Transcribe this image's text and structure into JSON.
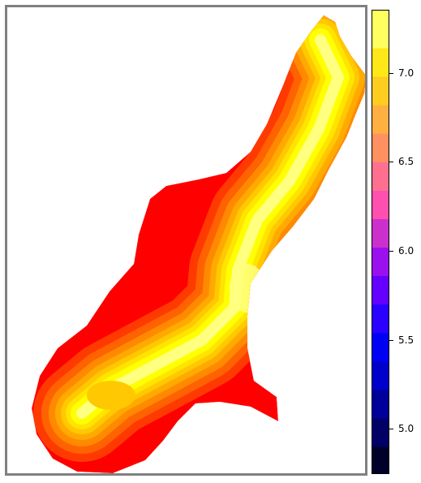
{
  "chart_data": {
    "type": "heatmap",
    "title": "",
    "xlabel": "",
    "ylabel": "",
    "colorbar": {
      "min": 4.75,
      "max": 7.35,
      "ticks": [
        "5.0",
        "5.5",
        "6.0",
        "6.5",
        "7.0"
      ],
      "tick_values": [
        5.0,
        5.5,
        6.0,
        6.5,
        7.0
      ],
      "bands": [
        {
          "from": 4.75,
          "to": 4.9,
          "color": "#00002a"
        },
        {
          "from": 4.9,
          "to": 5.06,
          "color": "#000066"
        },
        {
          "from": 5.06,
          "to": 5.22,
          "color": "#00009a"
        },
        {
          "from": 5.22,
          "to": 5.38,
          "color": "#0000cc"
        },
        {
          "from": 5.38,
          "to": 5.54,
          "color": "#0000f5"
        },
        {
          "from": 5.54,
          "to": 5.7,
          "color": "#2a00ff"
        },
        {
          "from": 5.7,
          "to": 5.86,
          "color": "#6400ff"
        },
        {
          "from": 5.86,
          "to": 6.02,
          "color": "#9a10ee"
        },
        {
          "from": 6.02,
          "to": 6.18,
          "color": "#cc30cc"
        },
        {
          "from": 6.18,
          "to": 6.34,
          "color": "#ff50b0"
        },
        {
          "from": 6.34,
          "to": 6.5,
          "color": "#ff7090"
        },
        {
          "from": 6.5,
          "to": 6.66,
          "color": "#ff9060"
        },
        {
          "from": 6.66,
          "to": 6.82,
          "color": "#ffb040"
        },
        {
          "from": 6.82,
          "to": 6.98,
          "color": "#ffcc20"
        },
        {
          "from": 6.98,
          "to": 7.14,
          "color": "#ffe818"
        },
        {
          "from": 7.14,
          "to": 7.35,
          "color": "#ffff60"
        }
      ]
    },
    "field_levels": [
      {
        "value": 6.55,
        "color": "#ff0000"
      },
      {
        "value": 6.62,
        "color": "#ff3a00"
      },
      {
        "value": 6.7,
        "color": "#ff6200"
      },
      {
        "value": 6.8,
        "color": "#ff8a00"
      },
      {
        "value": 6.9,
        "color": "#ffaa00"
      },
      {
        "value": 7.0,
        "color": "#ffc800"
      },
      {
        "value": 7.1,
        "color": "#ffe400"
      },
      {
        "value": 7.2,
        "color": "#ffff00"
      },
      {
        "value": 7.3,
        "color": "#ffff80"
      }
    ]
  }
}
